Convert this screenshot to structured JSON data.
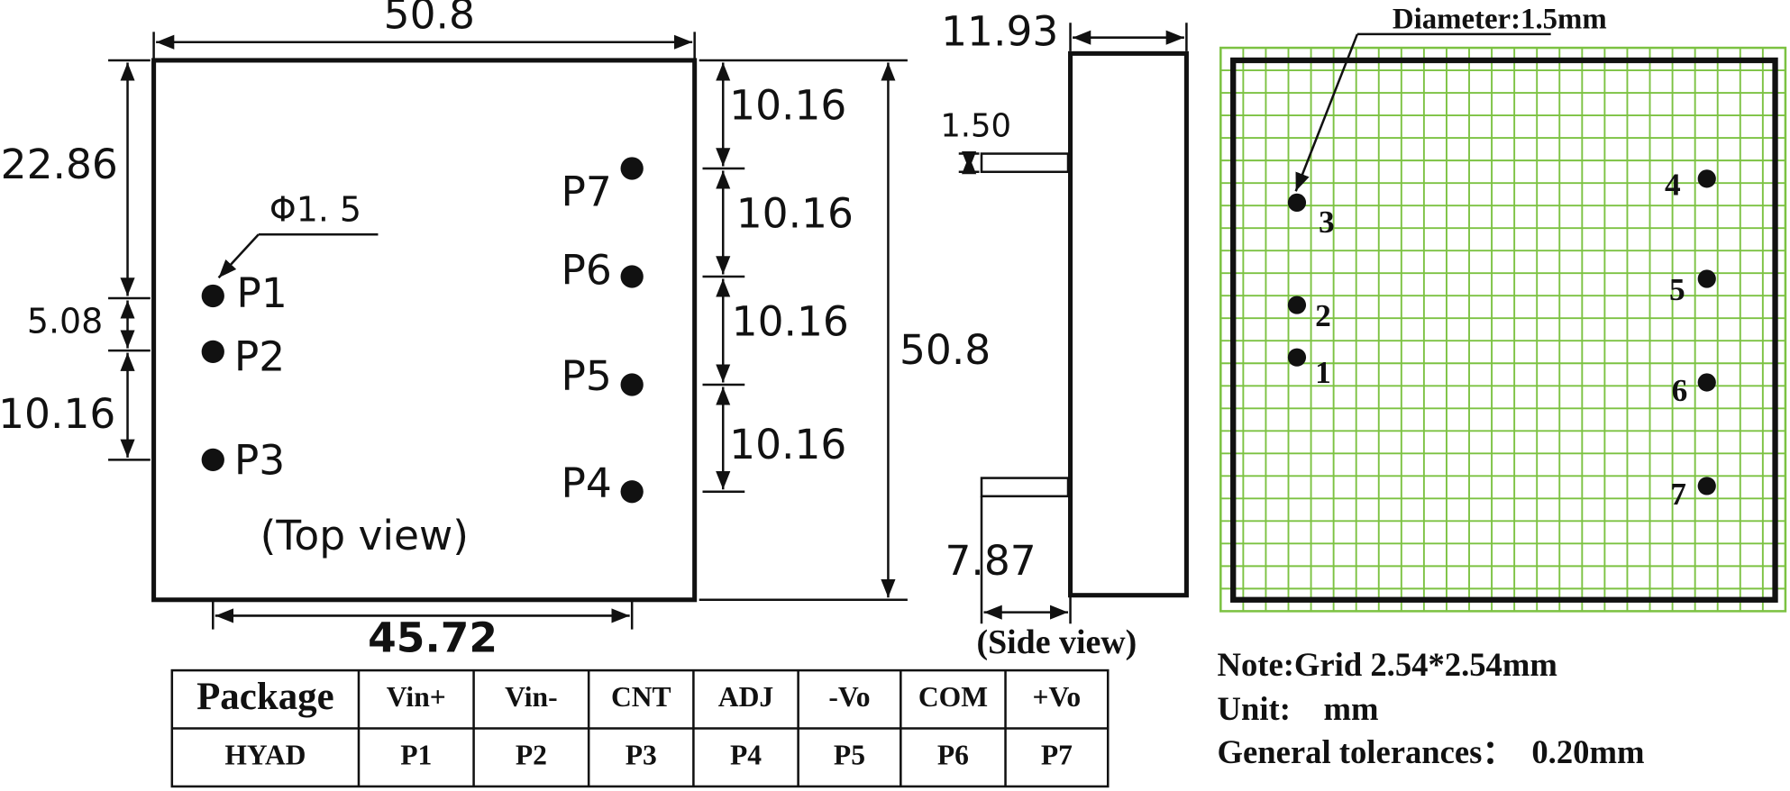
{
  "top_view": {
    "width": "50.8",
    "dim_left_1": "22.86",
    "dim_left_2": "5.08",
    "dim_left_3": "10.16",
    "pin_span": "45.72",
    "dim_right_1": "10.16",
    "dim_right_2": "10.16",
    "dim_right_3": "10.16",
    "dim_right_4": "10.16",
    "height": "50.8",
    "pin_diameter": "Φ1. 5",
    "pins": [
      "P1",
      "P2",
      "P3",
      "P4",
      "P5",
      "P6",
      "P7"
    ],
    "caption": "(Top view)"
  },
  "side_view": {
    "depth": "11.93",
    "pin_diameter": "1.50",
    "pin_length": "7.87",
    "caption": "(Side view)"
  },
  "grid_view": {
    "diameter_note": "Diameter:1.5mm",
    "pins": [
      "1",
      "2",
      "3",
      "4",
      "5",
      "6",
      "7"
    ]
  },
  "table": {
    "header": [
      "Package",
      "Vin+",
      "Vin-",
      "CNT",
      "ADJ",
      "-Vo",
      "COM",
      "+Vo"
    ],
    "row": [
      "HYAD",
      "P1",
      "P2",
      "P3",
      "P4",
      "P5",
      "P6",
      "P7"
    ]
  },
  "notes": [
    "Note:Grid 2.54*2.54mm",
    "Unit:　mm",
    "General tolerances：  0.20mm"
  ]
}
